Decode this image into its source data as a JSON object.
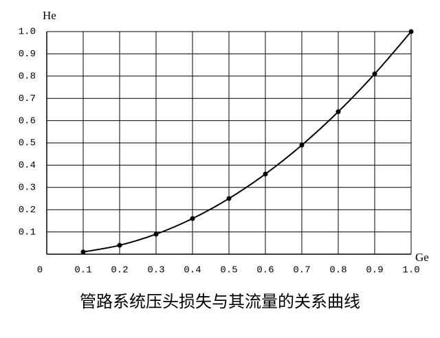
{
  "chart_data": {
    "type": "line",
    "title": "管路系统压头损失与其流量的关系曲线",
    "x_label": "Ge",
    "y_label": "He",
    "x": [
      0.1,
      0.2,
      0.3,
      0.4,
      0.5,
      0.6,
      0.7,
      0.8,
      0.9,
      1.0
    ],
    "series": [
      {
        "name": "He",
        "color": "#000000",
        "values": [
          0.01,
          0.04,
          0.09,
          0.16,
          0.25,
          0.36,
          0.49,
          0.64,
          0.81,
          1.0
        ]
      }
    ],
    "xlim": [
      0,
      1
    ],
    "ylim": [
      0,
      1
    ],
    "xticks": [
      0,
      0.1,
      0.2,
      0.3,
      0.4,
      0.5,
      0.6,
      0.7,
      0.8,
      0.9,
      {
        "value": 1,
        "label": "1.0"
      }
    ],
    "yticks": [
      0.1,
      0.2,
      0.3,
      0.4,
      0.5,
      0.6,
      0.7,
      0.8,
      0.9,
      {
        "value": 1,
        "label": "1.0"
      }
    ],
    "grid": true
  }
}
